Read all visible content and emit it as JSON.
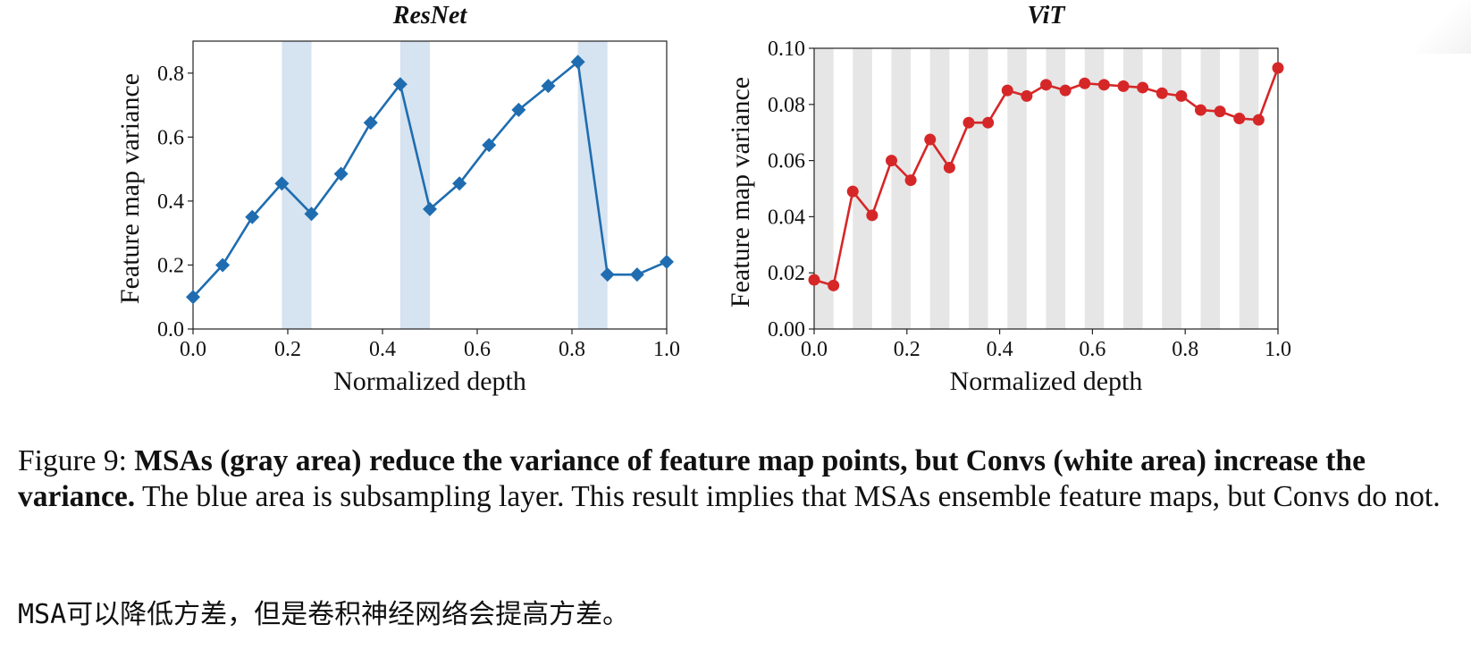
{
  "chart_data": [
    {
      "type": "line",
      "title": "ResNet",
      "xlabel": "Normalized depth",
      "ylabel": "Feature map variance",
      "xlim": [
        0,
        1
      ],
      "ylim": [
        0,
        0.9
      ],
      "xticks": [
        "0.0",
        "0.2",
        "0.4",
        "0.6",
        "0.8",
        "1.0"
      ],
      "yticks": [
        "0.0",
        "0.2",
        "0.4",
        "0.6",
        "0.8"
      ],
      "grid": false,
      "shaded_regions": [
        [
          0.1875,
          0.25
        ],
        [
          0.4375,
          0.5
        ],
        [
          0.8125,
          0.875
        ]
      ],
      "shade_color": "#d6e3f1",
      "series": [
        {
          "color": "#1f6db0",
          "marker": "diamond",
          "x": [
            0,
            0.0625,
            0.125,
            0.1875,
            0.25,
            0.3125,
            0.375,
            0.4375,
            0.5,
            0.5625,
            0.625,
            0.6875,
            0.75,
            0.8125,
            0.875,
            0.9375,
            1.0
          ],
          "y": [
            0.1,
            0.2,
            0.35,
            0.455,
            0.36,
            0.485,
            0.645,
            0.765,
            0.375,
            0.455,
            0.575,
            0.685,
            0.76,
            0.835,
            0.17,
            0.17,
            0.21
          ]
        }
      ]
    },
    {
      "type": "line",
      "title": "ViT",
      "xlabel": "Normalized depth",
      "ylabel": "Feature map variance",
      "xlim": [
        0,
        1
      ],
      "ylim": [
        0,
        0.1
      ],
      "xticks": [
        "0.0",
        "0.2",
        "0.4",
        "0.6",
        "0.8",
        "1.0"
      ],
      "yticks": [
        "0.00",
        "0.02",
        "0.04",
        "0.06",
        "0.08",
        "0.10"
      ],
      "grid": false,
      "shaded_regions": [
        [
          0.0,
          0.0417
        ],
        [
          0.0833,
          0.125
        ],
        [
          0.1667,
          0.2083
        ],
        [
          0.25,
          0.2917
        ],
        [
          0.3333,
          0.375
        ],
        [
          0.4167,
          0.4583
        ],
        [
          0.5,
          0.5417
        ],
        [
          0.5833,
          0.625
        ],
        [
          0.6667,
          0.7083
        ],
        [
          0.75,
          0.7917
        ],
        [
          0.8333,
          0.875
        ],
        [
          0.9167,
          0.9583
        ]
      ],
      "shade_color": "#e6e6e6",
      "series": [
        {
          "color": "#d62728",
          "marker": "circle",
          "x": [
            0,
            0.0417,
            0.0833,
            0.125,
            0.1667,
            0.2083,
            0.25,
            0.2917,
            0.3333,
            0.375,
            0.4167,
            0.4583,
            0.5,
            0.5417,
            0.5833,
            0.625,
            0.6667,
            0.7083,
            0.75,
            0.7917,
            0.8333,
            0.875,
            0.9167,
            0.9583,
            1.0
          ],
          "y": [
            0.0175,
            0.0155,
            0.049,
            0.0405,
            0.06,
            0.053,
            0.0675,
            0.0575,
            0.0735,
            0.0735,
            0.085,
            0.083,
            0.087,
            0.085,
            0.0875,
            0.087,
            0.0865,
            0.086,
            0.084,
            0.083,
            0.078,
            0.0775,
            0.075,
            0.0745,
            0.093
          ]
        }
      ]
    }
  ],
  "caption": {
    "prefix": "Figure 9: ",
    "bold": "MSAs (gray area) reduce the variance of feature map points, but Convs (white area) increase the variance.",
    "rest": " The blue area is subsampling layer. This result implies that MSAs ensemble feature maps, but Convs do not."
  },
  "note": "MSA可以降低方差，但是卷积神经网络会提高方差。"
}
